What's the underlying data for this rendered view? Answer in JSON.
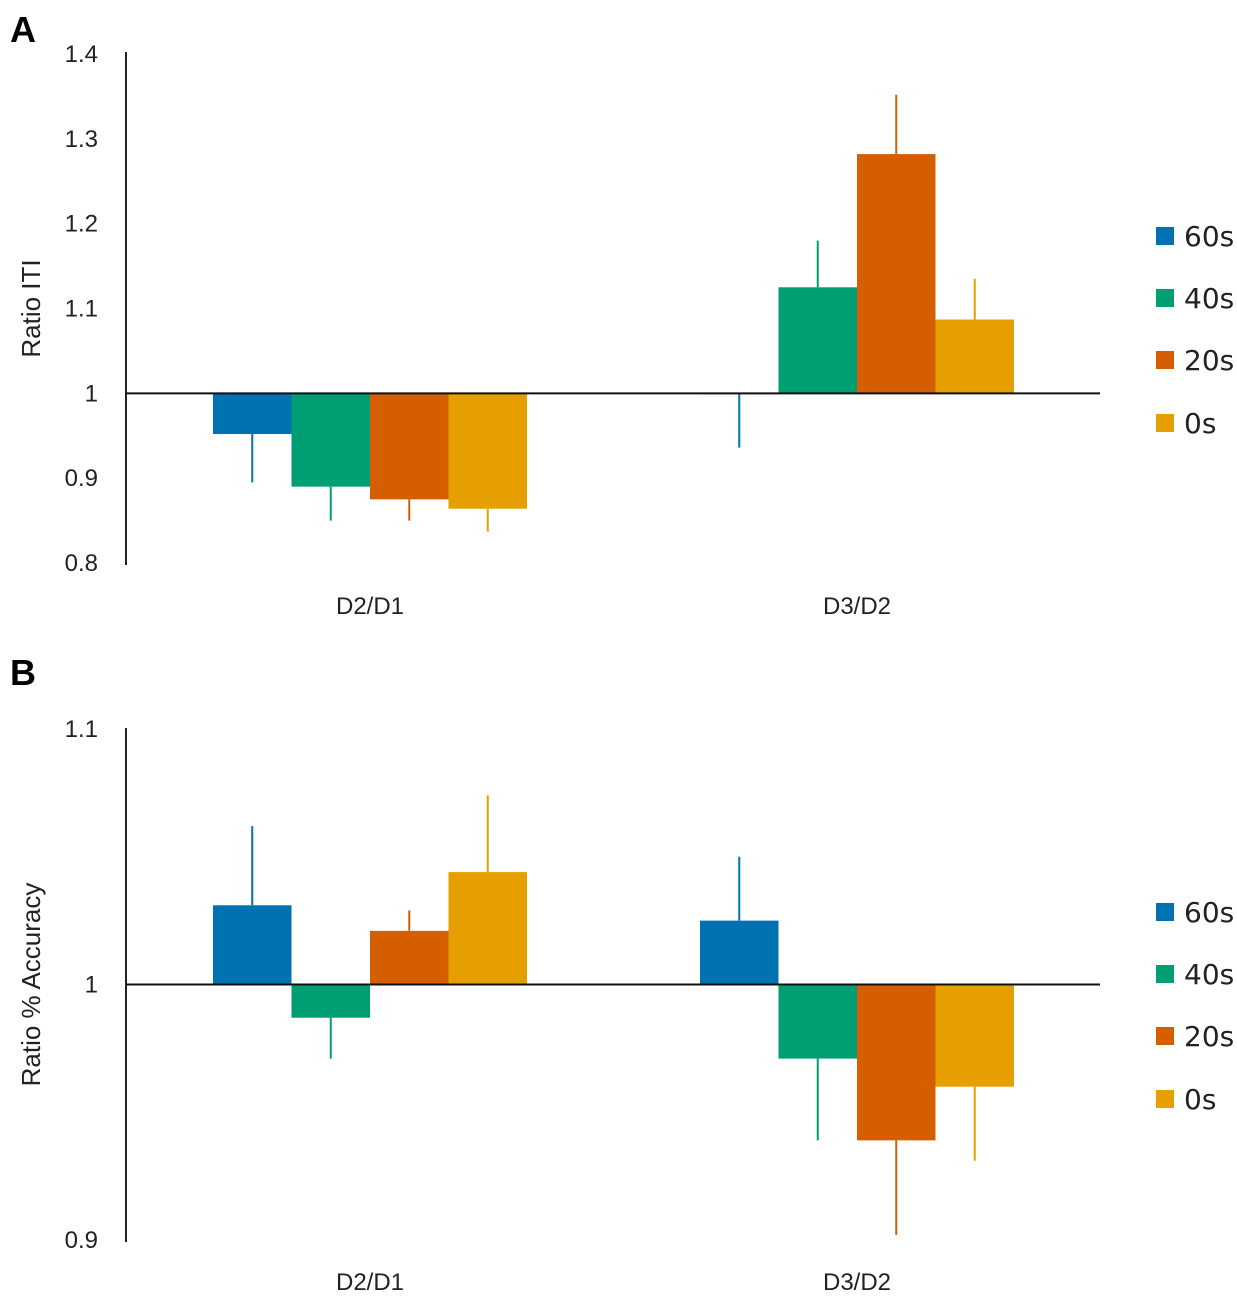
{
  "chart_data": [
    {
      "panel": "A",
      "type": "bar",
      "ylabel": "Ratio ITI",
      "ylim": [
        0.8,
        1.4
      ],
      "ticks": [
        "0.8",
        "0.9",
        "1",
        "1.1",
        "1.2",
        "1.3",
        "1.4"
      ],
      "baseline": 1,
      "categories": [
        "D2/D1",
        "D3/D2"
      ],
      "series": [
        {
          "name": "60s",
          "color": "#0072b2",
          "values": [
            0.952,
            0.999
          ],
          "errors": [
            0.057,
            0.063
          ]
        },
        {
          "name": "40s",
          "color": "#009e73",
          "values": [
            0.89,
            1.125
          ],
          "errors": [
            0.04,
            0.055
          ]
        },
        {
          "name": "20s",
          "color": "#d55e00",
          "values": [
            0.875,
            1.282
          ],
          "errors": [
            0.025,
            0.07
          ]
        },
        {
          "name": "0s",
          "color": "#e69f00",
          "values": [
            0.864,
            1.087
          ],
          "errors": [
            0.027,
            0.048
          ]
        }
      ]
    },
    {
      "panel": "B",
      "type": "bar",
      "ylabel": "Ratio % Accuracy",
      "ylim": [
        0.9,
        1.1
      ],
      "ticks": [
        "0.9",
        "1",
        "1.1"
      ],
      "baseline": 1,
      "categories": [
        "D2/D1",
        "D3/D2"
      ],
      "series": [
        {
          "name": "60s",
          "color": "#0072b2",
          "values": [
            1.031,
            1.025
          ],
          "errors": [
            0.031,
            0.025
          ]
        },
        {
          "name": "40s",
          "color": "#009e73",
          "values": [
            0.987,
            0.971
          ],
          "errors": [
            0.016,
            0.032
          ]
        },
        {
          "name": "20s",
          "color": "#d55e00",
          "values": [
            1.021,
            0.939
          ],
          "errors": [
            0.008,
            0.037
          ]
        },
        {
          "name": "0s",
          "color": "#e69f00",
          "values": [
            1.044,
            0.96
          ],
          "errors": [
            0.03,
            0.029
          ]
        }
      ]
    }
  ]
}
